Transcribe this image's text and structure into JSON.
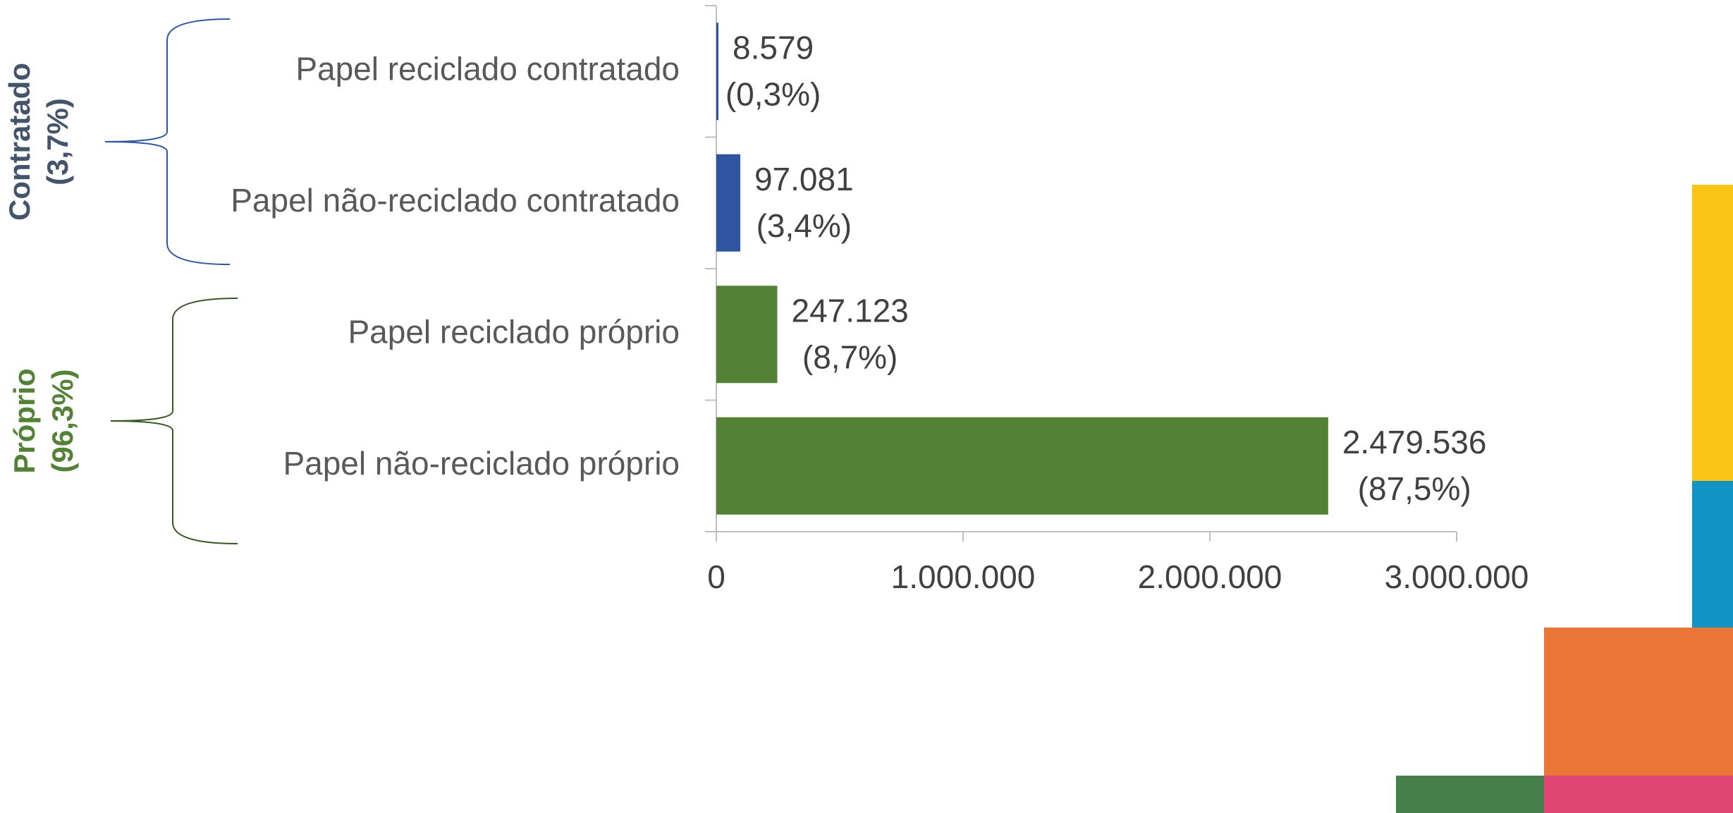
{
  "chart_data": {
    "type": "barh",
    "categories": [
      "Papel reciclado contratado",
      "Papel não-reciclado contratado",
      "Papel reciclado próprio",
      "Papel não-reciclado próprio"
    ],
    "values": [
      8579,
      97081,
      247123,
      2479536
    ],
    "value_labels": [
      "8.579",
      "97.081",
      "247.123",
      "2.479.536"
    ],
    "share_labels": [
      "(0,3%)",
      "(3,4%)",
      "(8,7%)",
      "(87,5%)"
    ],
    "colors": [
      "#2f55a0",
      "#2f55a0",
      "#538135",
      "#538135"
    ],
    "xlim": [
      0,
      3000000
    ],
    "xticks": [
      0,
      {
        "value": 1000000,
        "label": "1.000.000"
      },
      {
        "value": 2000000,
        "label": "2.000.000"
      },
      {
        "value": 3000000,
        "label": "3.000.000"
      }
    ],
    "groups": [
      {
        "name": "Contratado",
        "share": "(3,7%)",
        "color": "#44546a",
        "brace_color": "#2f55a0"
      },
      {
        "name": "Próprio",
        "share": "(96,3%)",
        "color": "#538135",
        "brace_color": "#375623"
      }
    ]
  }
}
